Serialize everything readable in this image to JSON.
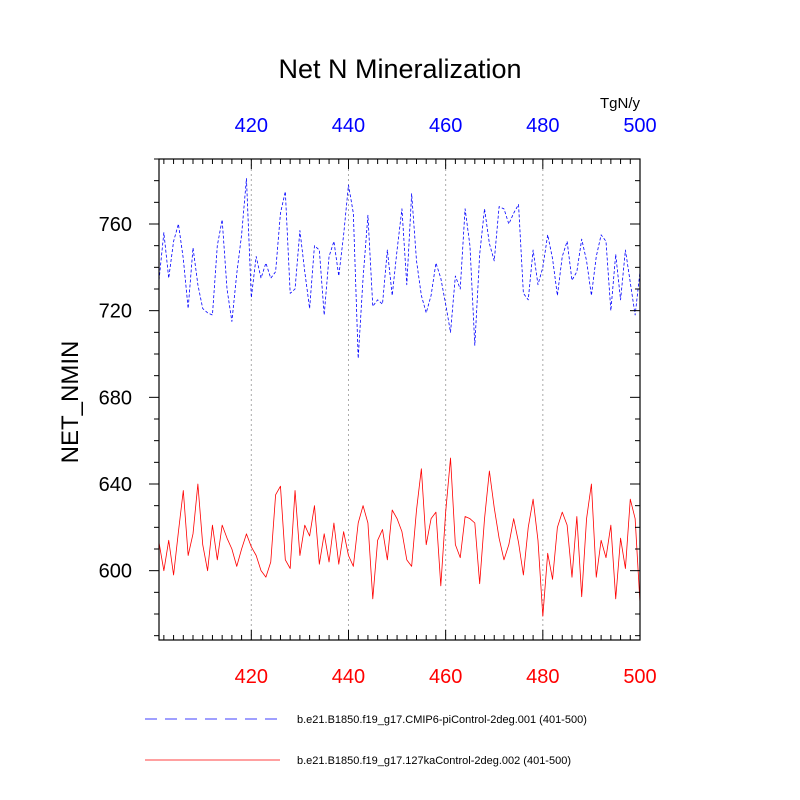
{
  "chart_data": {
    "type": "line",
    "title": "Net N Mineralization",
    "ylabel": "NET_NMIN",
    "units": "TgN/y",
    "xlim": [
      401,
      500
    ],
    "ylim": [
      568,
      790
    ],
    "x_ticks": [
      420,
      440,
      460,
      480,
      500
    ],
    "y_ticks": [
      600,
      640,
      680,
      720,
      760
    ],
    "grid": "vertical dotted at major x ticks",
    "top_axis_color": "#0000ff",
    "bottom_axis_color": "#ff0000",
    "x_start": 401,
    "series": [
      {
        "name": "b.e21.B1850.f19_g17.CMIP6-piControl-2deg.001 (401-500)",
        "color": "#0000ff",
        "dash": "dashed",
        "values": [
          734,
          756,
          735,
          752,
          760,
          744,
          721,
          749,
          732,
          721,
          719,
          718,
          750,
          762,
          730,
          715,
          737,
          755,
          781,
          726,
          745,
          735,
          742,
          735,
          738,
          765,
          775,
          728,
          730,
          757,
          738,
          721,
          750,
          748,
          718,
          745,
          752,
          736,
          755,
          778,
          765,
          698,
          735,
          764,
          722,
          725,
          723,
          748,
          727,
          748,
          767,
          732,
          774,
          743,
          727,
          719,
          727,
          742,
          735,
          723,
          710,
          736,
          730,
          767,
          750,
          704,
          746,
          767,
          751,
          743,
          768,
          767,
          760,
          765,
          769,
          728,
          725,
          748,
          732,
          740,
          755,
          744,
          727,
          745,
          752,
          734,
          738,
          753,
          743,
          727,
          745,
          755,
          752,
          720,
          746,
          725,
          748,
          733,
          718,
          738
        ]
      },
      {
        "name": "b.e21.B1850.f19_g17.127kaControl-2deg.002 (401-500)",
        "color": "#ff0000",
        "dash": "solid",
        "values": [
          613,
          600,
          614,
          598,
          618,
          637,
          607,
          617,
          640,
          612,
          600,
          621,
          605,
          621,
          615,
          610,
          602,
          610,
          617,
          611,
          607,
          600,
          597,
          604,
          635,
          639,
          605,
          601,
          637,
          607,
          621,
          616,
          630,
          603,
          617,
          604,
          622,
          603,
          618,
          607,
          602,
          622,
          630,
          622,
          587,
          614,
          619,
          605,
          628,
          624,
          618,
          605,
          602,
          628,
          647,
          612,
          624,
          627,
          593,
          627,
          652,
          612,
          606,
          625,
          624,
          622,
          594,
          624,
          646,
          629,
          615,
          605,
          612,
          624,
          613,
          598,
          620,
          633,
          614,
          579,
          608,
          596,
          620,
          627,
          621,
          597,
          625,
          588,
          624,
          640,
          597,
          614,
          606,
          621,
          587,
          615,
          601,
          633,
          624,
          585
        ]
      }
    ]
  }
}
